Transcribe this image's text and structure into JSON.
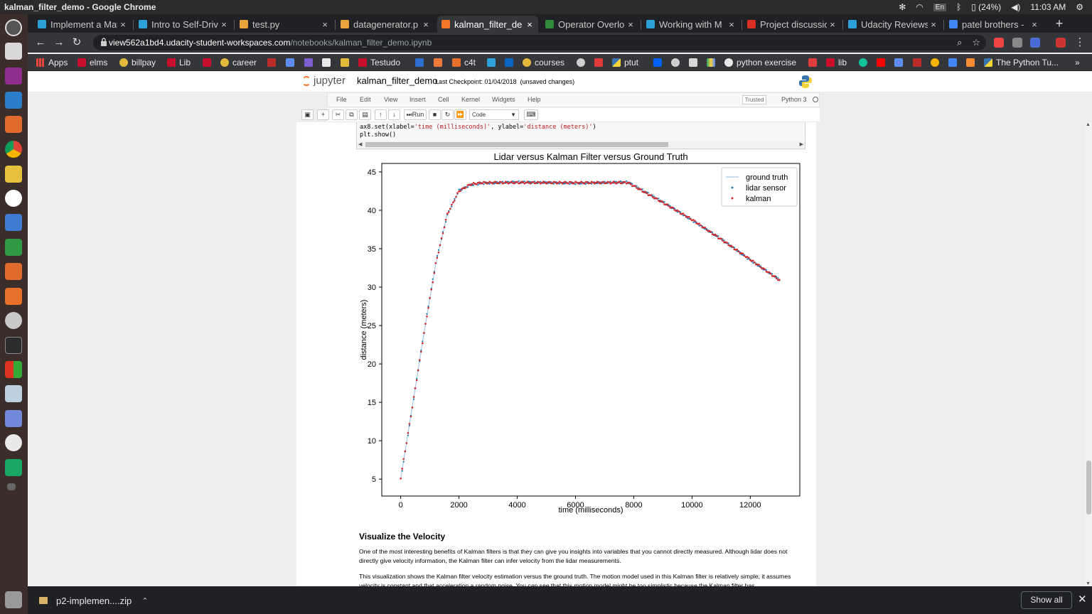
{
  "os": {
    "window_title": "kalman_filter_demo - Google Chrome",
    "keyboard": "En",
    "battery": "(24%)",
    "clock": "11:03 AM"
  },
  "tabs": [
    {
      "label": "Implement a Mat",
      "favicon_color": "#2d9fd9",
      "icon": "udacity-icon"
    },
    {
      "label": "Intro to Self-Driv",
      "favicon_color": "#2d9fd9",
      "icon": "udacity-icon"
    },
    {
      "label": "test.py",
      "favicon_color": "#e8a33c",
      "icon": "file-icon"
    },
    {
      "label": "datagenerator.p",
      "favicon_color": "#e8a33c",
      "icon": "file-icon"
    },
    {
      "label": "kalman_filter_de",
      "favicon_color": "#f37726",
      "icon": "jupyter-icon"
    },
    {
      "label": "Operator Overlo",
      "favicon_color": "#2f8a3a",
      "icon": "geeks-icon"
    },
    {
      "label": "Working with M",
      "favicon_color": "#2d9fd9",
      "icon": "udacity-icon"
    },
    {
      "label": "Project discussio",
      "favicon_color": "#d93025",
      "icon": "gmail-icon"
    },
    {
      "label": "Udacity Reviews",
      "favicon_color": "#2d9fd9",
      "icon": "udacity-icon"
    },
    {
      "label": "patel brothers -",
      "favicon_color": "#4285f4",
      "icon": "google-icon"
    }
  ],
  "url": {
    "host": "view562a1bd4.udacity-student-workspaces.com",
    "path": "/notebooks/kalman_filter_demo.ipynb"
  },
  "bookmarks": {
    "apps": "Apps",
    "elms": "elms",
    "billpay": "billpay",
    "lib": "Lib",
    "career": "career",
    "testudo": "Testudo",
    "c4t": "c4t",
    "courses": "courses",
    "ptut": "ptut",
    "python_exercise": "python exercise",
    "lib2": "lib",
    "python_tutorial": "The Python Tu..."
  },
  "jupyter": {
    "logo_text": "jupyter",
    "notebook_name": "kalman_filter_demo",
    "checkpoint": "Last Checkpoint: 01/04/2018",
    "unsaved": "(unsaved changes)",
    "menu": [
      "File",
      "Edit",
      "View",
      "Insert",
      "Cell",
      "Kernel",
      "Widgets",
      "Help"
    ],
    "trusted": "Trusted",
    "kernel": "Python 3",
    "run_label": "Run",
    "cell_type": "Code"
  },
  "code": {
    "line1_a": "ax8.set(xlabel=",
    "line1_b": "'time (milliseconds)'",
    "line1_c": ", ylabel=",
    "line1_d": "'distance (meters)'",
    "line1_e": ")",
    "line2": "plt.show()"
  },
  "chart_data": {
    "type": "scatter",
    "title": "Lidar versus Kalman Filter versus Ground Truth",
    "xlabel": "time (milliseconds)",
    "ylabel": "distance (meters)",
    "xlim": [
      -650,
      13700
    ],
    "ylim": [
      2.8,
      46.1
    ],
    "xticks": [
      0,
      2000,
      4000,
      6000,
      8000,
      10000,
      12000
    ],
    "yticks": [
      5,
      10,
      15,
      20,
      25,
      30,
      35,
      40,
      45
    ],
    "legend_position": "upper right",
    "series": [
      {
        "name": "ground truth",
        "style": "line",
        "color": "#a6c8e8",
        "x": [
          0,
          400,
          800,
          1200,
          1600,
          2000,
          2300,
          2700,
          4000,
          6000,
          7800,
          9000,
          10000,
          11000,
          12000,
          13000
        ],
        "y": [
          5,
          14.5,
          24,
          33,
          39.5,
          42.5,
          43.2,
          43.6,
          43.6,
          43.6,
          43.6,
          41,
          38.8,
          36.2,
          33.6,
          30.9
        ]
      },
      {
        "name": "lidar sensor",
        "style": "points",
        "color": "#1f77b4",
        "x": [
          0,
          400,
          800,
          1200,
          1600,
          2000,
          2400,
          2800,
          4000,
          6000,
          7800,
          9000,
          10000,
          11000,
          12000,
          13000
        ],
        "y": [
          5,
          14.3,
          24.1,
          33.2,
          39.4,
          42.6,
          43.3,
          43.5,
          43.7,
          43.5,
          43.7,
          41.1,
          38.7,
          36.3,
          33.5,
          31.0
        ]
      },
      {
        "name": "kalman",
        "style": "points",
        "color": "#d62728",
        "x": [
          0,
          400,
          800,
          1200,
          1600,
          2000,
          2400,
          2800,
          4000,
          6000,
          7800,
          9000,
          10000,
          11000,
          12000,
          13000
        ],
        "y": [
          5.2,
          14.4,
          24.0,
          33.0,
          39.5,
          42.5,
          43.4,
          43.6,
          43.6,
          43.6,
          43.6,
          41.0,
          38.8,
          36.2,
          33.6,
          30.9
        ]
      }
    ]
  },
  "section": {
    "title": "Visualize the Velocity",
    "para1": "One of the most interesting benefits of Kalman filters is that they can give you insights into variables that you cannot directly measured. Although lidar does not directly give velocity information, the Kalman filter can infer velocity from the lidar measurements.",
    "para2": "This visualization shows the Kalman filter velocity estimation versus the ground truth. The motion model used in this Kalman filter is relatively simple; it assumes velocity is constant and that acceleration a random noise. You can see that this motion model might be too simplistic because the Kalman filter has"
  },
  "downloads": {
    "file": "p2-implemen....zip",
    "show_all": "Show all"
  }
}
